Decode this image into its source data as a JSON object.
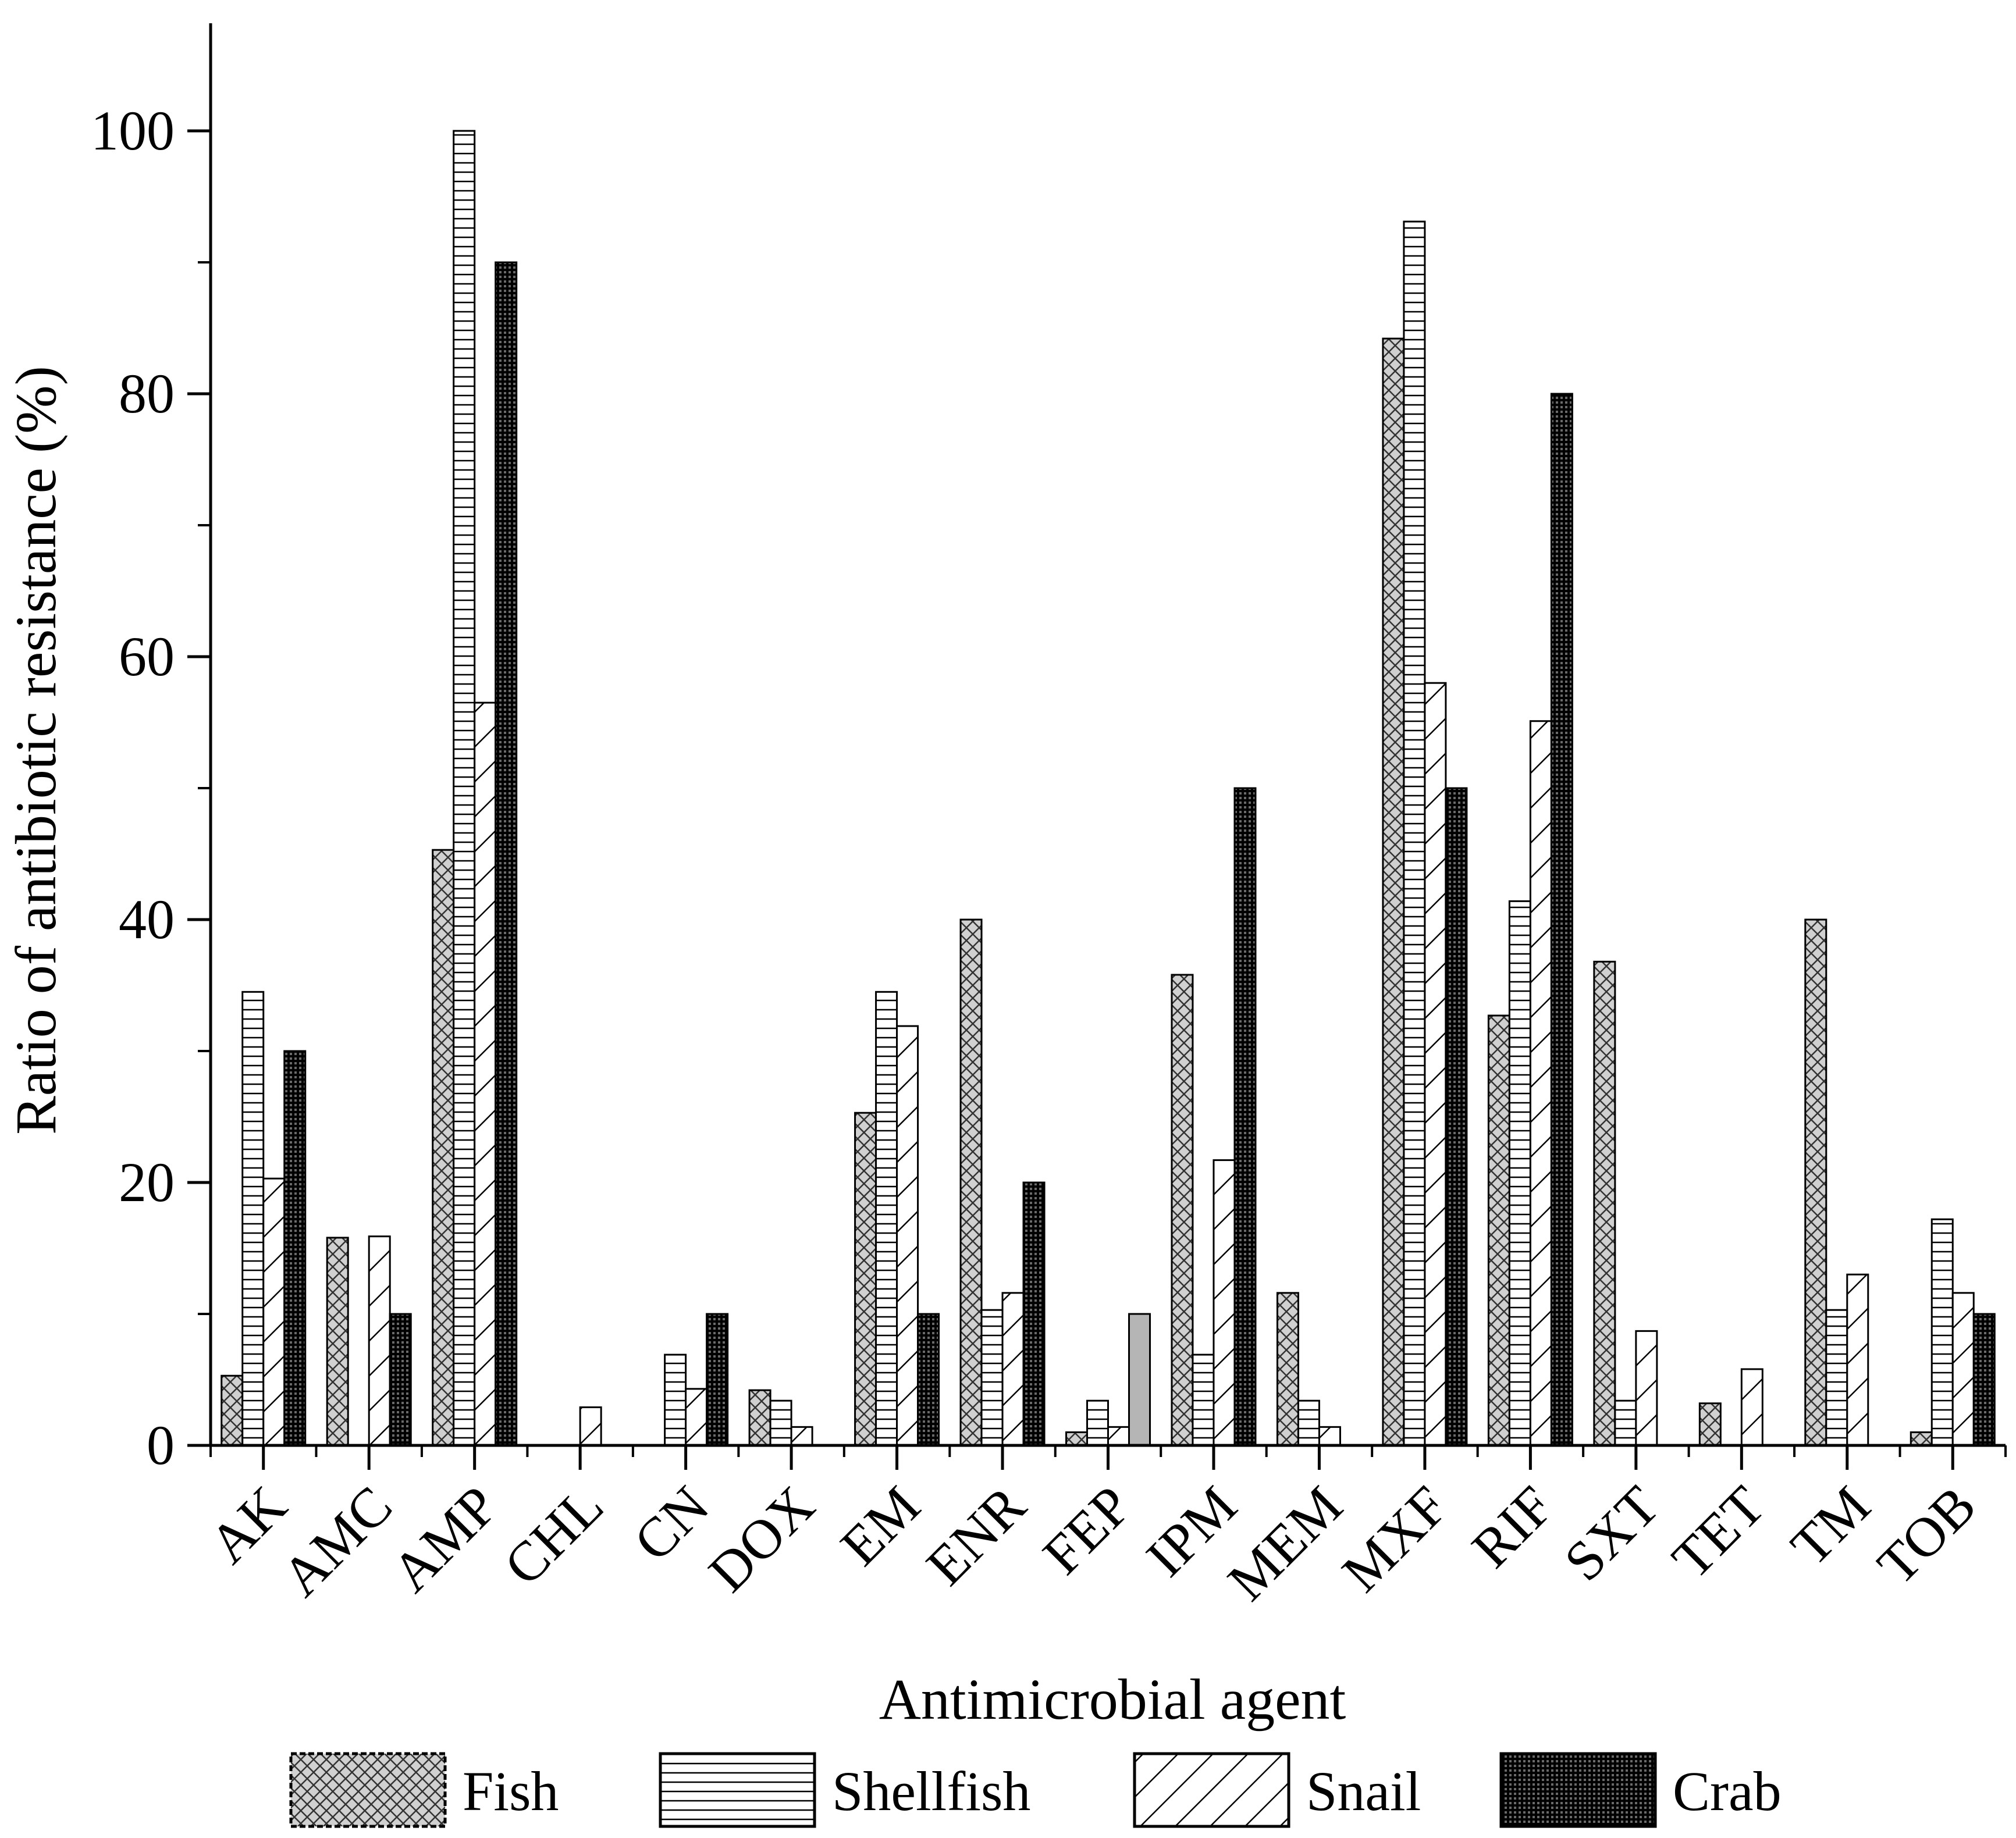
{
  "chart_data": {
    "type": "bar",
    "title": "",
    "xlabel": "Antimicrobial agent",
    "ylabel": "Ratio of antibiotic resistance (%)",
    "ylim": [
      0,
      108
    ],
    "yticks": [
      0,
      20,
      40,
      60,
      80,
      100
    ],
    "yticks_text": [
      "0",
      "20",
      "40",
      "60",
      "80",
      "100"
    ],
    "grid": false,
    "legend_position": "bottom",
    "categories": [
      "AK",
      "AMC",
      "AMP",
      "CHL",
      "CN",
      "DOX",
      "EM",
      "ENR",
      "FEP",
      "IPM",
      "MEM",
      "MXF",
      "RIF",
      "SXT",
      "TET",
      "TM",
      "TOB"
    ],
    "series": [
      {
        "name": "Fish",
        "pattern": "crosshatch",
        "color": "#d0d0d0",
        "values": [
          5.3,
          15.8,
          45.3,
          0,
          0,
          4.2,
          25.3,
          40.0,
          1.0,
          35.8,
          11.6,
          84.2,
          32.7,
          36.8,
          3.2,
          40.0,
          1.0
        ]
      },
      {
        "name": "Shellfish",
        "pattern": "horizontal",
        "color": "#ffffff",
        "values": [
          34.5,
          0,
          100.0,
          0,
          6.9,
          3.4,
          34.5,
          10.3,
          3.4,
          6.9,
          3.4,
          93.1,
          41.4,
          3.4,
          0,
          10.3,
          17.2
        ]
      },
      {
        "name": "Snail",
        "pattern": "diagonal",
        "color": "#ffffff",
        "values": [
          20.3,
          15.9,
          56.5,
          2.9,
          4.3,
          1.4,
          31.9,
          11.6,
          1.4,
          21.7,
          1.4,
          58.0,
          55.1,
          8.7,
          5.8,
          13.0,
          11.6
        ]
      },
      {
        "name": "Crab",
        "pattern": "dense-grid",
        "color": "#1a1a1a",
        "values": [
          30.0,
          10.0,
          90.0,
          0,
          10.0,
          0,
          10.0,
          20.0,
          10.0,
          50.0,
          0,
          50.0,
          80.0,
          0,
          0,
          0,
          10.0
        ]
      }
    ]
  }
}
